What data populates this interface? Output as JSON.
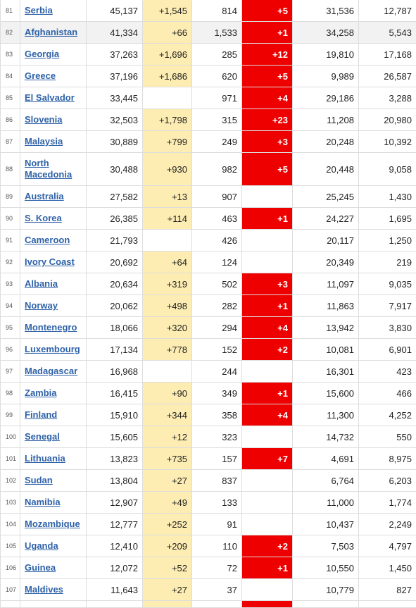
{
  "table": {
    "rows": [
      {
        "rank": "81",
        "country": "Serbia",
        "total_cases": "45,137",
        "new_cases": "+1,545",
        "total_deaths": "814",
        "new_deaths": "+5",
        "total_recovered": "31,536",
        "active_cases": "12,787"
      },
      {
        "rank": "82",
        "country": "Afghanistan",
        "total_cases": "41,334",
        "new_cases": "+66",
        "total_deaths": "1,533",
        "new_deaths": "+1",
        "total_recovered": "34,258",
        "active_cases": "5,543"
      },
      {
        "rank": "83",
        "country": "Georgia",
        "total_cases": "37,263",
        "new_cases": "+1,696",
        "total_deaths": "285",
        "new_deaths": "+12",
        "total_recovered": "19,810",
        "active_cases": "17,168"
      },
      {
        "rank": "84",
        "country": "Greece",
        "total_cases": "37,196",
        "new_cases": "+1,686",
        "total_deaths": "620",
        "new_deaths": "+5",
        "total_recovered": "9,989",
        "active_cases": "26,587"
      },
      {
        "rank": "85",
        "country": "El Salvador",
        "total_cases": "33,445",
        "new_cases": "",
        "total_deaths": "971",
        "new_deaths": "+4",
        "total_recovered": "29,186",
        "active_cases": "3,288"
      },
      {
        "rank": "86",
        "country": "Slovenia",
        "total_cases": "32,503",
        "new_cases": "+1,798",
        "total_deaths": "315",
        "new_deaths": "+23",
        "total_recovered": "11,208",
        "active_cases": "20,980"
      },
      {
        "rank": "87",
        "country": "Malaysia",
        "total_cases": "30,889",
        "new_cases": "+799",
        "total_deaths": "249",
        "new_deaths": "+3",
        "total_recovered": "20,248",
        "active_cases": "10,392"
      },
      {
        "rank": "88",
        "country": "North Macedonia",
        "total_cases": "30,488",
        "new_cases": "+930",
        "total_deaths": "982",
        "new_deaths": "+5",
        "total_recovered": "20,448",
        "active_cases": "9,058"
      },
      {
        "rank": "89",
        "country": "Australia",
        "total_cases": "27,582",
        "new_cases": "+13",
        "total_deaths": "907",
        "new_deaths": "",
        "total_recovered": "25,245",
        "active_cases": "1,430"
      },
      {
        "rank": "90",
        "country": "S. Korea",
        "total_cases": "26,385",
        "new_cases": "+114",
        "total_deaths": "463",
        "new_deaths": "+1",
        "total_recovered": "24,227",
        "active_cases": "1,695"
      },
      {
        "rank": "91",
        "country": "Cameroon",
        "total_cases": "21,793",
        "new_cases": "",
        "total_deaths": "426",
        "new_deaths": "",
        "total_recovered": "20,117",
        "active_cases": "1,250"
      },
      {
        "rank": "92",
        "country": "Ivory Coast",
        "total_cases": "20,692",
        "new_cases": "+64",
        "total_deaths": "124",
        "new_deaths": "",
        "total_recovered": "20,349",
        "active_cases": "219"
      },
      {
        "rank": "93",
        "country": "Albania",
        "total_cases": "20,634",
        "new_cases": "+319",
        "total_deaths": "502",
        "new_deaths": "+3",
        "total_recovered": "11,097",
        "active_cases": "9,035"
      },
      {
        "rank": "94",
        "country": "Norway",
        "total_cases": "20,062",
        "new_cases": "+498",
        "total_deaths": "282",
        "new_deaths": "+1",
        "total_recovered": "11,863",
        "active_cases": "7,917"
      },
      {
        "rank": "95",
        "country": "Montenegro",
        "total_cases": "18,066",
        "new_cases": "+320",
        "total_deaths": "294",
        "new_deaths": "+4",
        "total_recovered": "13,942",
        "active_cases": "3,830"
      },
      {
        "rank": "96",
        "country": "Luxembourg",
        "total_cases": "17,134",
        "new_cases": "+778",
        "total_deaths": "152",
        "new_deaths": "+2",
        "total_recovered": "10,081",
        "active_cases": "6,901"
      },
      {
        "rank": "97",
        "country": "Madagascar",
        "total_cases": "16,968",
        "new_cases": "",
        "total_deaths": "244",
        "new_deaths": "",
        "total_recovered": "16,301",
        "active_cases": "423"
      },
      {
        "rank": "98",
        "country": "Zambia",
        "total_cases": "16,415",
        "new_cases": "+90",
        "total_deaths": "349",
        "new_deaths": "+1",
        "total_recovered": "15,600",
        "active_cases": "466"
      },
      {
        "rank": "99",
        "country": "Finland",
        "total_cases": "15,910",
        "new_cases": "+344",
        "total_deaths": "358",
        "new_deaths": "+4",
        "total_recovered": "11,300",
        "active_cases": "4,252"
      },
      {
        "rank": "100",
        "country": "Senegal",
        "total_cases": "15,605",
        "new_cases": "+12",
        "total_deaths": "323",
        "new_deaths": "",
        "total_recovered": "14,732",
        "active_cases": "550"
      },
      {
        "rank": "101",
        "country": "Lithuania",
        "total_cases": "13,823",
        "new_cases": "+735",
        "total_deaths": "157",
        "new_deaths": "+7",
        "total_recovered": "4,691",
        "active_cases": "8,975"
      },
      {
        "rank": "102",
        "country": "Sudan",
        "total_cases": "13,804",
        "new_cases": "+27",
        "total_deaths": "837",
        "new_deaths": "",
        "total_recovered": "6,764",
        "active_cases": "6,203"
      },
      {
        "rank": "103",
        "country": "Namibia",
        "total_cases": "12,907",
        "new_cases": "+49",
        "total_deaths": "133",
        "new_deaths": "",
        "total_recovered": "11,000",
        "active_cases": "1,774"
      },
      {
        "rank": "104",
        "country": "Mozambique",
        "total_cases": "12,777",
        "new_cases": "+252",
        "total_deaths": "91",
        "new_deaths": "",
        "total_recovered": "10,437",
        "active_cases": "2,249"
      },
      {
        "rank": "105",
        "country": "Uganda",
        "total_cases": "12,410",
        "new_cases": "+209",
        "total_deaths": "110",
        "new_deaths": "+2",
        "total_recovered": "7,503",
        "active_cases": "4,797"
      },
      {
        "rank": "106",
        "country": "Guinea",
        "total_cases": "12,072",
        "new_cases": "+52",
        "total_deaths": "72",
        "new_deaths": "+1",
        "total_recovered": "10,550",
        "active_cases": "1,450"
      },
      {
        "rank": "107",
        "country": "Maldives",
        "total_cases": "11,643",
        "new_cases": "+27",
        "total_deaths": "37",
        "new_deaths": "",
        "total_recovered": "10,779",
        "active_cases": "827"
      }
    ]
  },
  "colors": {
    "new_cases_bg": "#fdedb3",
    "new_deaths_bg": "#ee0000",
    "link": "#2f62a8",
    "highlight_row": "#f2f2f2"
  }
}
